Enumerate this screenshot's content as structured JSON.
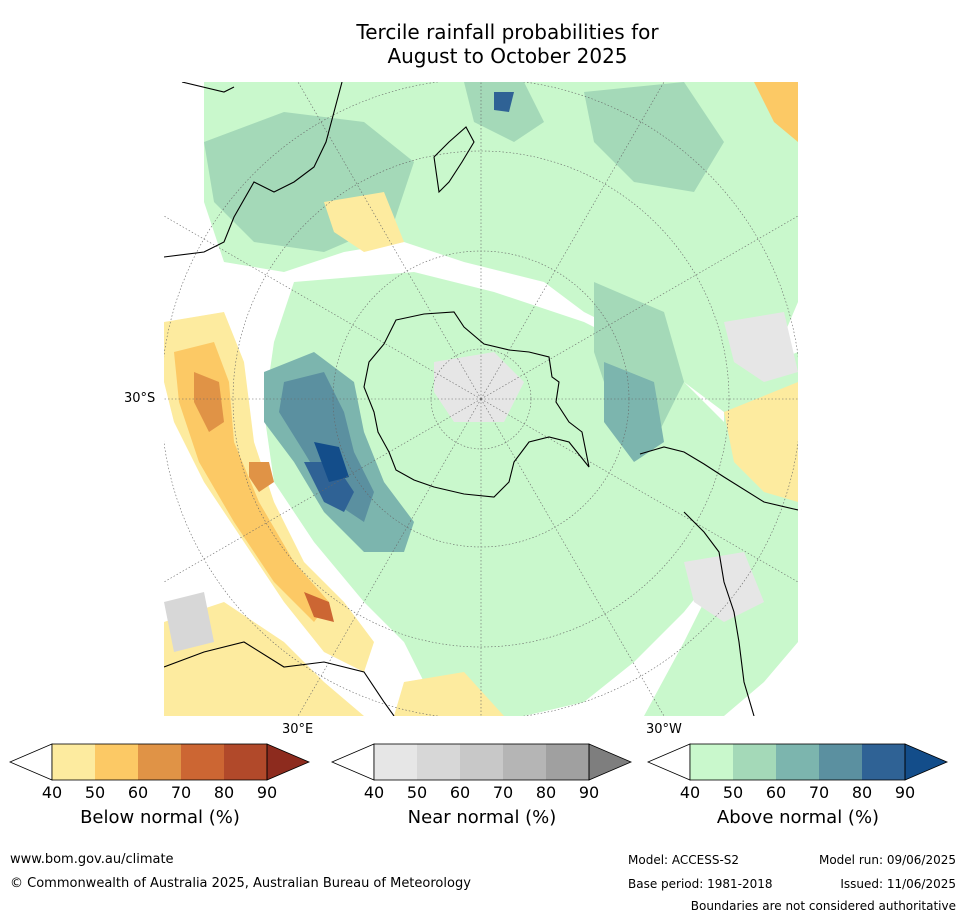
{
  "title": {
    "line1": "Tercile rainfall probabilities for",
    "line2": "August to October 2025"
  },
  "map": {
    "projection": "south-polar stereographic",
    "labels": {
      "lat": "30°S",
      "lon_east": "30°E",
      "lon_west": "30°W"
    },
    "colors": {
      "land_outline": "#000000",
      "graticule": "#666666"
    }
  },
  "colorbars": [
    {
      "name": "below",
      "label": "Below normal (%)",
      "ticks": [
        "40",
        "50",
        "60",
        "70",
        "80",
        "90"
      ],
      "colors": [
        "#ffffff",
        "#fdeb9f",
        "#fcc965",
        "#e09346",
        "#cc6633",
        "#b1492a",
        "#8d2b1e"
      ]
    },
    {
      "name": "near",
      "label": "Near normal (%)",
      "ticks": [
        "40",
        "50",
        "60",
        "70",
        "80",
        "90"
      ],
      "colors": [
        "#ffffff",
        "#e6e6e6",
        "#d7d7d7",
        "#c8c8c8",
        "#b5b5b5",
        "#a0a0a0",
        "#7e7e7e"
      ]
    },
    {
      "name": "above",
      "label": "Above normal (%)",
      "ticks": [
        "40",
        "50",
        "60",
        "70",
        "80",
        "90"
      ],
      "colors": [
        "#ffffff",
        "#c9f8cc",
        "#a4d9b8",
        "#7cb5ae",
        "#5b90a0",
        "#2f6295",
        "#134d8a"
      ]
    }
  ],
  "footer": {
    "website": "www.bom.gov.au/climate",
    "copyright": "© Commonwealth of Australia 2025, Australian Bureau of Meteorology",
    "model": "Model: ACCESS-S2",
    "base_period": "Base period: 1981-2018",
    "model_run": "Model run: 09/06/2025",
    "issued": "Issued: 11/06/2025",
    "disclaimer": "Boundaries are not considered authoritative"
  }
}
